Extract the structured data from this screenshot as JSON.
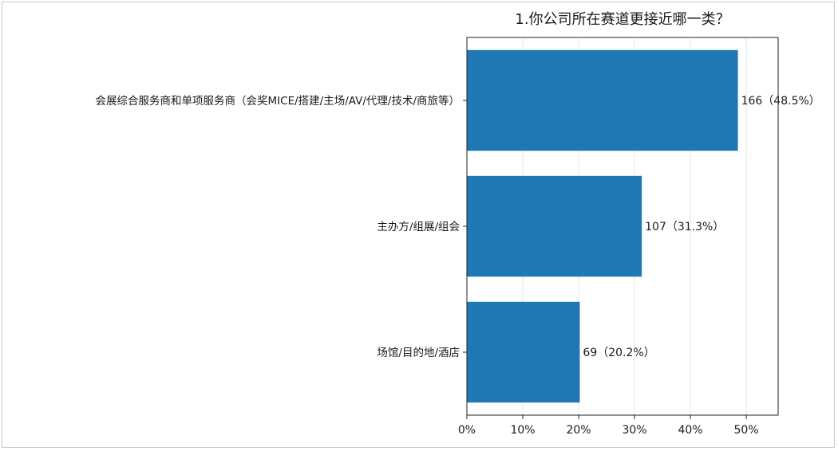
{
  "chart_data": {
    "type": "bar",
    "orientation": "horizontal",
    "title": "1.你公司所在赛道更接近哪一类？",
    "xlabel": "",
    "ylabel": "",
    "categories": [
      "会展综合服务商和单项服务商（会奖MICE/搭建/主场/AV/代理/技术/商旅等）",
      "主办方/组展/组会",
      "场馆/目的地/酒店"
    ],
    "values": [
      48.5,
      31.3,
      20.2
    ],
    "counts": [
      166,
      107,
      69
    ],
    "data_labels": [
      "166（48.5%）",
      "107（31.3%）",
      "69（20.2%）"
    ],
    "xlim": [
      0,
      55.7
    ],
    "xticks": [
      0,
      10,
      20,
      30,
      40,
      50
    ],
    "xtick_labels": [
      "0%",
      "10%",
      "20%",
      "30%",
      "40%",
      "50%"
    ],
    "grid": "vertical",
    "bar_color": "#1f77b4"
  }
}
